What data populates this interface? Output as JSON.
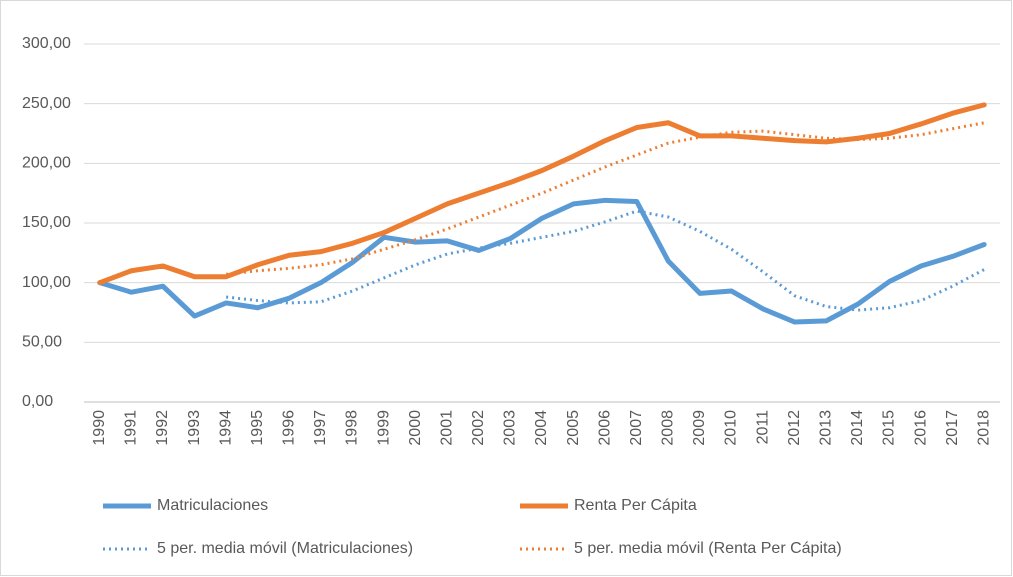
{
  "chart_data": {
    "type": "line",
    "categories": [
      "1990",
      "1991",
      "1992",
      "1993",
      "1994",
      "1995",
      "1996",
      "1997",
      "1998",
      "1999",
      "2000",
      "2001",
      "2002",
      "2003",
      "2004",
      "2005",
      "2006",
      "2007",
      "2008",
      "2009",
      "2010",
      "2011",
      "2012",
      "2013",
      "2014",
      "2015",
      "2016",
      "2017",
      "2018"
    ],
    "series": [
      {
        "name": "Matriculaciones",
        "color": "#5b9bd5",
        "style": "solid",
        "values": [
          100,
          92,
          97,
          72,
          83,
          79,
          87,
          100,
          117,
          138,
          134,
          135,
          127,
          137,
          154,
          166,
          169,
          168,
          118,
          91,
          93,
          78,
          67,
          68,
          82,
          101,
          114,
          122,
          132
        ]
      },
      {
        "name": "Renta Per Cápita",
        "color": "#ed7d31",
        "style": "solid",
        "values": [
          100,
          110,
          114,
          105,
          105,
          115,
          123,
          126,
          133,
          142,
          154,
          166,
          175,
          184,
          194,
          206,
          219,
          230,
          234,
          223,
          223,
          221,
          219,
          218,
          221,
          225,
          233,
          242,
          249
        ]
      },
      {
        "name": "5 per. media móvil (Matriculaciones)",
        "color": "#5b9bd5",
        "style": "dotted",
        "values": [
          null,
          null,
          null,
          null,
          88,
          85,
          83,
          84,
          93,
          104,
          115,
          124,
          129,
          133,
          138,
          143,
          151,
          160,
          155,
          143,
          128,
          109,
          89,
          80,
          77,
          79,
          85,
          97,
          111
        ]
      },
      {
        "name": "5 per. media móvil (Renta Per Cápita)",
        "color": "#ed7d31",
        "style": "dotted",
        "values": [
          null,
          null,
          null,
          null,
          107,
          110,
          112,
          115,
          120,
          128,
          136,
          145,
          155,
          165,
          175,
          186,
          197,
          207,
          217,
          222,
          226,
          227,
          224,
          221,
          220,
          221,
          224,
          229,
          234
        ]
      }
    ],
    "ylim": [
      0,
      300
    ],
    "yticks": [
      {
        "value": 0,
        "label": "0,00"
      },
      {
        "value": 50,
        "label": "50,00"
      },
      {
        "value": 100,
        "label": "100,00"
      },
      {
        "value": 150,
        "label": "150,00"
      },
      {
        "value": 200,
        "label": "200,00"
      },
      {
        "value": 250,
        "label": "250,00"
      },
      {
        "value": 300,
        "label": "300,00"
      }
    ],
    "grid": true,
    "legend": "bottom"
  }
}
